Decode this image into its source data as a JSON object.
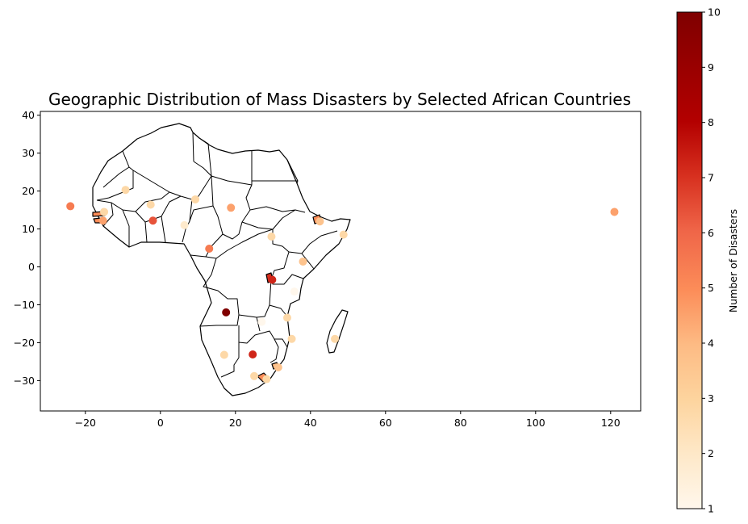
{
  "chart_data": {
    "type": "scatter",
    "title": "Geographic Distribution of Mass Disasters by Selected African Countries",
    "xlabel": "",
    "ylabel": "",
    "xlim": [
      -32,
      128
    ],
    "ylim": [
      -38,
      41
    ],
    "xticks": [
      -20,
      0,
      20,
      40,
      60,
      80,
      100,
      120
    ],
    "yticks": [
      -30,
      -20,
      -10,
      0,
      10,
      20,
      30,
      40
    ],
    "grid": false,
    "colormap": "OrRd",
    "colorbar": {
      "label": "Number of Disasters",
      "range": [
        1,
        10
      ],
      "ticks": [
        1,
        2,
        3,
        4,
        5,
        6,
        7,
        8,
        9,
        10
      ]
    },
    "points": [
      {
        "x": -24,
        "y": 16,
        "value": 6
      },
      {
        "x": -9.3,
        "y": 20.3,
        "value": 3
      },
      {
        "x": -15,
        "y": 14.5,
        "value": 3
      },
      {
        "x": -15.3,
        "y": 12.2,
        "value": 5
      },
      {
        "x": -2.6,
        "y": 16.4,
        "value": 3
      },
      {
        "x": -2,
        "y": 12.2,
        "value": 7
      },
      {
        "x": 6.4,
        "y": 11,
        "value": 2
      },
      {
        "x": 9.3,
        "y": 17.8,
        "value": 3
      },
      {
        "x": 18.8,
        "y": 15.6,
        "value": 5
      },
      {
        "x": 13,
        "y": 4.8,
        "value": 6
      },
      {
        "x": 29.6,
        "y": 8,
        "value": 3
      },
      {
        "x": 42.5,
        "y": 12,
        "value": 4
      },
      {
        "x": 48.8,
        "y": 8.5,
        "value": 3
      },
      {
        "x": 38,
        "y": 1.4,
        "value": 4
      },
      {
        "x": 29.8,
        "y": -3.4,
        "value": 8
      },
      {
        "x": 35.7,
        "y": -6.5,
        "value": 1
      },
      {
        "x": 17.5,
        "y": -12,
        "value": 10
      },
      {
        "x": 33.8,
        "y": -13.4,
        "value": 3
      },
      {
        "x": 27,
        "y": -14.5,
        "value": 1
      },
      {
        "x": 35,
        "y": -19,
        "value": 3
      },
      {
        "x": 46.5,
        "y": -19,
        "value": 3
      },
      {
        "x": 17,
        "y": -23.2,
        "value": 3
      },
      {
        "x": 24.6,
        "y": -23.1,
        "value": 8
      },
      {
        "x": 25,
        "y": -28.8,
        "value": 3
      },
      {
        "x": 31.4,
        "y": -26.5,
        "value": 4
      },
      {
        "x": 28.3,
        "y": -29.6,
        "value": 3
      },
      {
        "x": 121,
        "y": 14.5,
        "value": 5
      }
    ]
  }
}
